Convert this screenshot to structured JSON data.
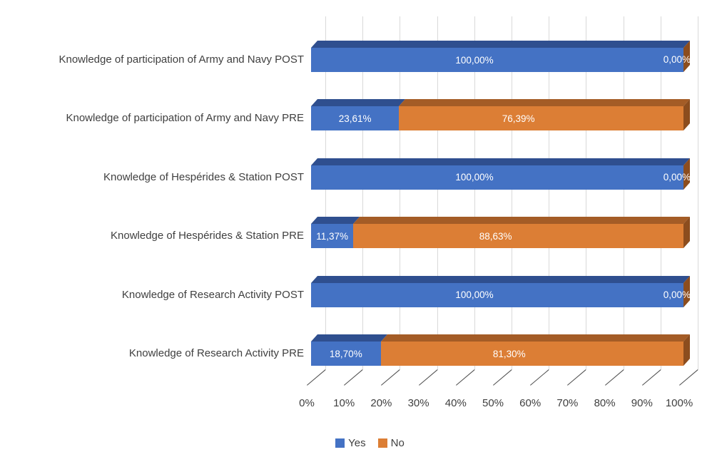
{
  "chart_data": {
    "type": "bar",
    "orientation": "horizontal",
    "stacked": true,
    "style": "3d",
    "unit": "percent",
    "categories": [
      "Knowledge of participation of Army and Navy POST",
      "Knowledge of participation of Army and Navy PRE",
      "Knowledge of Hespérides & Station POST",
      "Knowledge of Hespérides & Station PRE",
      "Knowledge of Research Activity POST",
      "Knowledge of Research Activity PRE"
    ],
    "series": [
      {
        "name": "Yes",
        "color": "#4472C4",
        "top_color": "#2F4F8F",
        "values": [
          100,
          23.61,
          100,
          11.37,
          100,
          18.7
        ],
        "labels": [
          "100,00%",
          "23,61%",
          "100,00%",
          "11,37%",
          "100,00%",
          "18,70%"
        ]
      },
      {
        "name": "No",
        "color": "#DC7E35",
        "top_color": "#A45C26",
        "side_color": "#8C4D1E",
        "values": [
          0,
          76.39,
          0,
          88.63,
          0,
          81.3
        ],
        "labels": [
          "0,00%",
          "76,39%",
          "0,00%",
          "88,63%",
          "0,00%",
          "81,30%"
        ]
      }
    ],
    "x_ticks": [
      "0%",
      "10%",
      "20%",
      "30%",
      "40%",
      "50%",
      "60%",
      "70%",
      "80%",
      "90%",
      "100%"
    ],
    "xlim": [
      0,
      100
    ],
    "grid": true,
    "legend_position": "bottom"
  },
  "colors": {
    "background": "#FFFFFF",
    "gridline": "#D9D9D9",
    "tick": "#4D4D4D",
    "text": "#3F3F3F",
    "data_label": "#FFFFFF"
  }
}
